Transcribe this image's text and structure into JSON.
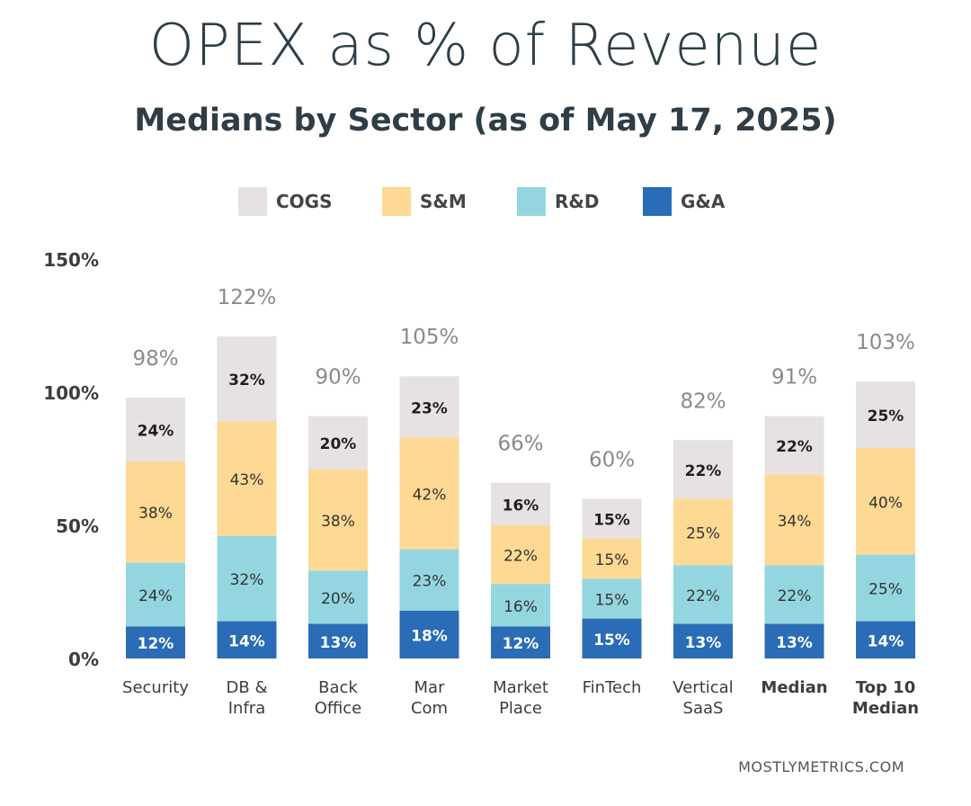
{
  "chart_data": {
    "type": "bar",
    "stacked": true,
    "title": "OPEX as % of Revenue",
    "subtitle": "Medians by Sector (as of May 17, 2025)",
    "categories": [
      [
        "Security"
      ],
      [
        "DB &",
        "Infra"
      ],
      [
        "Back",
        "Office"
      ],
      [
        "Mar",
        "Com"
      ],
      [
        "Market",
        "Place"
      ],
      [
        "FinTech"
      ],
      [
        "Vertical",
        "SaaS"
      ],
      [
        "Median"
      ],
      [
        "Top 10",
        "Median"
      ]
    ],
    "bold_categories": [
      7,
      8
    ],
    "series": [
      {
        "name": "G&A",
        "color": "#2a6cb6",
        "values": [
          12,
          14,
          13,
          18,
          12,
          15,
          13,
          13,
          14
        ]
      },
      {
        "name": "R&D",
        "color": "#93d6e0",
        "values": [
          24,
          32,
          20,
          23,
          16,
          15,
          22,
          22,
          25
        ]
      },
      {
        "name": "S&M",
        "color": "#fdd994",
        "values": [
          38,
          43,
          38,
          42,
          22,
          15,
          25,
          34,
          40
        ]
      },
      {
        "name": "COGS",
        "color": "#e6e2e1",
        "values": [
          24,
          32,
          20,
          23,
          16,
          15,
          22,
          22,
          25
        ]
      }
    ],
    "totals": [
      "98%",
      "122%",
      "90%",
      "105%",
      "66%",
      "60%",
      "82%",
      "91%",
      "103%"
    ],
    "yticks": [
      "0%",
      "50%",
      "100%",
      "150%"
    ],
    "ylim": [
      0,
      150
    ],
    "legend_order": [
      "COGS",
      "S&M",
      "R&D",
      "G&A"
    ],
    "grid": false,
    "legend_position": "top"
  },
  "source": "MOSTLYMETRICS.COM"
}
